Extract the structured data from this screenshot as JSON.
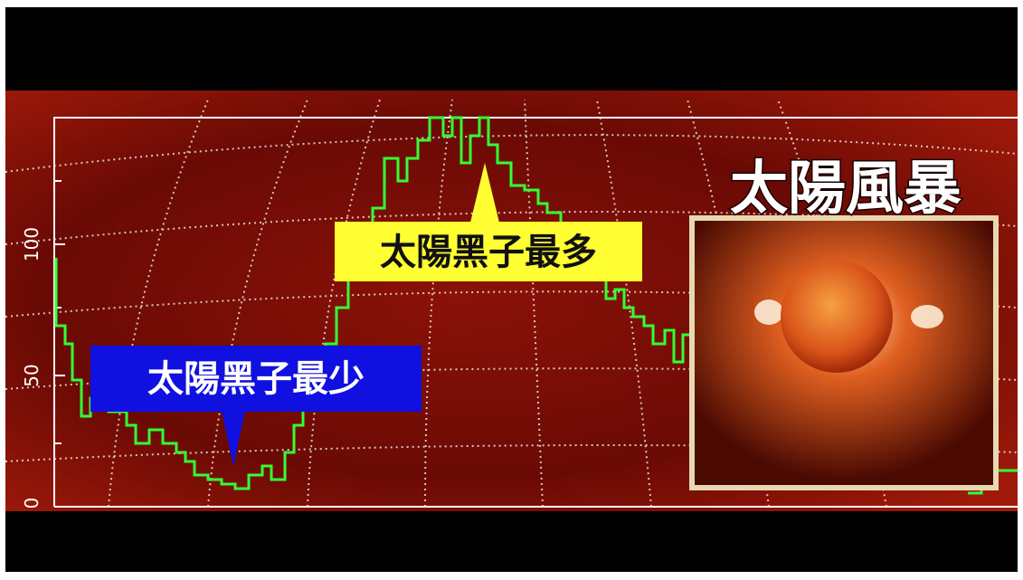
{
  "video_frame": {
    "title": "太陽風暴",
    "callout_max": "太陽黑子最多",
    "callout_min": "太陽黑子最少",
    "axis_labels": [
      "100",
      "50",
      "0"
    ]
  }
}
